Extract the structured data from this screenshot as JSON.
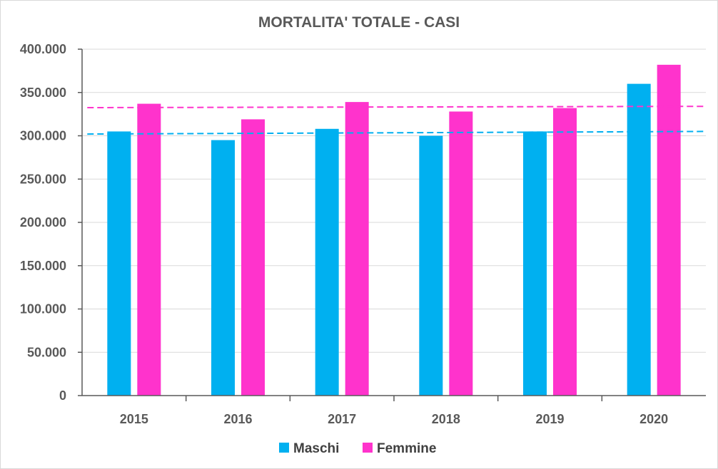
{
  "chart_data": {
    "type": "bar",
    "title": "MORTALITA' TOTALE - CASI",
    "categories": [
      "2015",
      "2016",
      "2017",
      "2018",
      "2019",
      "2020"
    ],
    "series": [
      {
        "name": "Maschi",
        "color": "#00b0f0",
        "values": [
          305000,
          295000,
          308000,
          300000,
          305000,
          360000
        ]
      },
      {
        "name": "Femmine",
        "color": "#ff33cc",
        "values": [
          337000,
          319000,
          339000,
          328000,
          332000,
          382000
        ]
      }
    ],
    "trendlines": [
      {
        "series": "Maschi",
        "color": "#00b0f0",
        "start": 302000,
        "end": 305000
      },
      {
        "series": "Femmine",
        "color": "#ff33cc",
        "start": 332500,
        "end": 334000
      }
    ],
    "yticks": [
      "0",
      "50.000",
      "100.000",
      "150.000",
      "200.000",
      "250.000",
      "300.000",
      "350.000",
      "400.000"
    ],
    "ylim": [
      0,
      400000
    ],
    "ystep": 50000,
    "grid": true,
    "legend": "bottom"
  }
}
